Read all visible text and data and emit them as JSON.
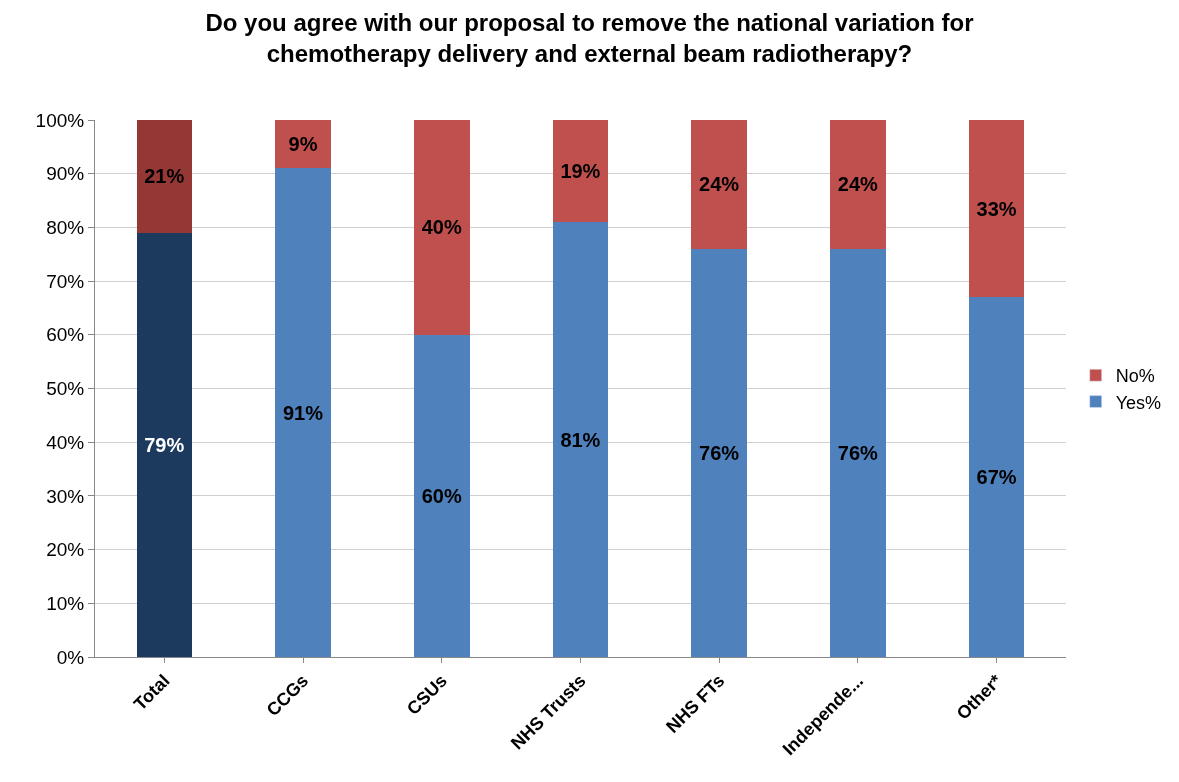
{
  "chart_data": {
    "type": "bar",
    "title": "Do you agree with our proposal to remove the national variation for chemotherapy delivery and external beam radiotherapy?",
    "categories": [
      "Total",
      "CCGs",
      "CSUs",
      "NHS Trusts",
      "NHS FTs",
      "Independe...",
      "Other*"
    ],
    "stacked": true,
    "series": [
      {
        "name": "Yes%",
        "color": "#4f81bd",
        "colors": [
          "#1b3a5e",
          "#4f81bd",
          "#4f81bd",
          "#4f81bd",
          "#4f81bd",
          "#4f81bd",
          "#4f81bd"
        ],
        "values": [
          79,
          91,
          60,
          81,
          76,
          76,
          67
        ],
        "value_labels": [
          "79%",
          "91%",
          "60%",
          "81%",
          "76%",
          "76%",
          "67%"
        ]
      },
      {
        "name": "No%",
        "color": "#c0504d",
        "colors": [
          "#953735",
          "#c0504d",
          "#c0504d",
          "#c0504d",
          "#c0504d",
          "#c0504d",
          "#c0504d"
        ],
        "values": [
          21,
          9,
          40,
          19,
          24,
          24,
          33
        ],
        "value_labels": [
          "21%",
          "9%",
          "40%",
          "19%",
          "24%",
          "24%",
          "33%"
        ]
      }
    ],
    "ylim": [
      0,
      100
    ],
    "yticks": [
      {
        "value": 0,
        "label": "0%"
      },
      {
        "value": 10,
        "label": "10%"
      },
      {
        "value": 20,
        "label": "20%"
      },
      {
        "value": 30,
        "label": "30%"
      },
      {
        "value": 40,
        "label": "40%"
      },
      {
        "value": 50,
        "label": "50%"
      },
      {
        "value": 60,
        "label": "60%"
      },
      {
        "value": 70,
        "label": "70%"
      },
      {
        "value": 80,
        "label": "80%"
      },
      {
        "value": 90,
        "label": "90%"
      },
      {
        "value": 100,
        "label": "100%"
      }
    ],
    "grid": "y",
    "legend": "right"
  }
}
